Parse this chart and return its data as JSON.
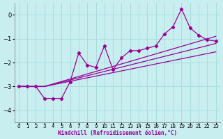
{
  "xlabel": "Windchill (Refroidissement éolien,°C)",
  "xlim": [
    -0.5,
    23.5
  ],
  "ylim": [
    -4.5,
    0.5
  ],
  "yticks": [
    0,
    -1,
    -2,
    -3,
    -4
  ],
  "xticks": [
    0,
    1,
    2,
    3,
    4,
    5,
    6,
    7,
    8,
    9,
    10,
    11,
    12,
    13,
    14,
    15,
    16,
    17,
    18,
    19,
    20,
    21,
    22,
    23
  ],
  "bg_color": "#c8eef0",
  "grid_color": "#aadddd",
  "line_color": "#990099",
  "series": {
    "noisy": {
      "x": [
        0,
        1,
        2,
        3,
        4,
        5,
        6,
        7,
        8,
        9,
        10,
        11,
        12,
        13,
        14,
        15,
        16,
        17,
        18,
        19,
        20,
        21,
        22,
        23
      ],
      "y": [
        -3.0,
        -3.0,
        -3.0,
        -3.5,
        -3.5,
        -3.5,
        -2.8,
        -1.6,
        -2.1,
        -2.2,
        -1.3,
        -2.3,
        -1.8,
        -1.5,
        -1.5,
        -1.4,
        -1.3,
        -0.8,
        -0.5,
        0.25,
        -0.55,
        -0.85,
        -1.05,
        -1.1
      ]
    },
    "upper": {
      "x": [
        0,
        3,
        23
      ],
      "y": [
        -3.0,
        -3.0,
        -0.9
      ]
    },
    "middle": {
      "x": [
        0,
        3,
        23
      ],
      "y": [
        -3.0,
        -3.0,
        -1.2
      ]
    },
    "lower": {
      "x": [
        0,
        3,
        23
      ],
      "y": [
        -3.0,
        -3.0,
        -1.55
      ]
    }
  }
}
